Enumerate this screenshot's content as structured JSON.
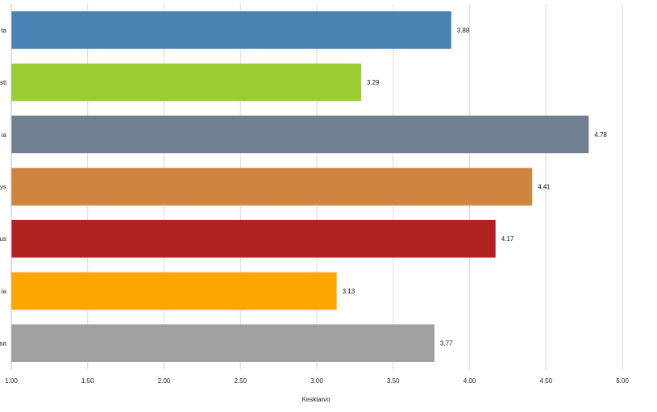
{
  "chart_data": {
    "type": "bar",
    "orientation": "horizontal",
    "categories": [
      "ta",
      "sti",
      "ia",
      "ys",
      "us",
      "ia",
      "sa"
    ],
    "values": [
      3.88,
      3.29,
      4.78,
      4.41,
      4.17,
      3.13,
      3.77
    ],
    "colors": [
      "#4682B4",
      "#9ACD32",
      "#708090",
      "#CD853F",
      "#B22222",
      "#FFA500",
      "#A0A0A0"
    ],
    "data_labels": [
      "3.88",
      "3.29",
      "4.78",
      "4.41",
      "4.17",
      "3.13",
      "3.77"
    ],
    "xlabel": "Keskiarvo",
    "ylabel": "",
    "title": "",
    "xlim": [
      1.0,
      5.0
    ],
    "ticks": [
      1.0,
      1.5,
      2.0,
      2.5,
      3.0,
      3.5,
      4.0,
      4.5,
      5.0
    ],
    "tick_labels": [
      "1.00",
      "1.50",
      "2.00",
      "2.50",
      "3.00",
      "3.50",
      "4.00",
      "4.50",
      "5.00"
    ],
    "grid": true,
    "legend": "none"
  }
}
